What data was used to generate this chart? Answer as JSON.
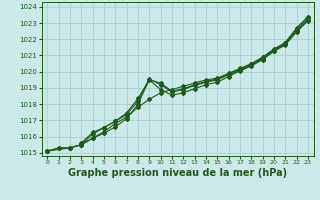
{
  "title": "Graphe pression niveau de la mer (hPa)",
  "title_fontsize": 7.0,
  "bg_color": "#cce8e8",
  "grid_color": "#aacfcf",
  "line_color": "#1a5c1a",
  "xlim": [
    -0.5,
    23.5
  ],
  "ylim": [
    1014.8,
    1024.3
  ],
  "yticks": [
    1015,
    1016,
    1017,
    1018,
    1019,
    1020,
    1021,
    1022,
    1023,
    1024
  ],
  "x_ticks": [
    0,
    1,
    2,
    3,
    4,
    5,
    6,
    7,
    8,
    9,
    10,
    11,
    12,
    13,
    14,
    15,
    16,
    17,
    18,
    19,
    20,
    21,
    22,
    23
  ],
  "series": [
    {
      "x": [
        0,
        1,
        2,
        3,
        4,
        5,
        6,
        7,
        8,
        9,
        10,
        11,
        12,
        13,
        14,
        15,
        16,
        17,
        18,
        19,
        20,
        21,
        22,
        23
      ],
      "y": [
        1015.1,
        1015.3,
        1015.3,
        1015.5,
        1015.9,
        1016.3,
        1016.8,
        1017.2,
        1017.8,
        1018.3,
        1018.7,
        1018.9,
        1019.1,
        1019.3,
        1019.5,
        1019.6,
        1019.9,
        1020.2,
        1020.5,
        1020.9,
        1021.4,
        1021.8,
        1022.7,
        1023.4
      ]
    },
    {
      "x": [
        0,
        1,
        2,
        3,
        4,
        5,
        6,
        7,
        8,
        9,
        10,
        11,
        12,
        13,
        14,
        15,
        16,
        17,
        18,
        19,
        20,
        21,
        22,
        23
      ],
      "y": [
        1015.1,
        1015.3,
        1015.3,
        1015.5,
        1015.9,
        1016.2,
        1016.6,
        1017.1,
        1018.0,
        1019.5,
        1019.3,
        1018.8,
        1018.95,
        1019.2,
        1019.4,
        1019.55,
        1019.85,
        1020.15,
        1020.45,
        1020.85,
        1021.35,
        1021.75,
        1022.6,
        1023.3
      ]
    },
    {
      "x": [
        0,
        2,
        3,
        4,
        5,
        6,
        7,
        8,
        9,
        10,
        11,
        12,
        13,
        14,
        15,
        16,
        17,
        18,
        19,
        20,
        21,
        22,
        23
      ],
      "y": [
        1015.1,
        1015.3,
        1015.5,
        1016.15,
        1016.55,
        1016.95,
        1017.35,
        1018.2,
        1019.55,
        1019.2,
        1018.75,
        1018.9,
        1019.15,
        1019.35,
        1019.5,
        1019.8,
        1020.1,
        1020.4,
        1020.8,
        1021.3,
        1021.7,
        1022.5,
        1023.2
      ]
    },
    {
      "x": [
        3,
        4,
        5,
        6,
        7,
        8,
        9,
        10,
        11,
        12,
        13,
        14,
        15,
        16,
        17,
        18,
        19,
        20,
        21,
        22,
        23
      ],
      "y": [
        1015.6,
        1016.25,
        1016.55,
        1016.95,
        1017.45,
        1018.35,
        1019.5,
        1018.9,
        1018.55,
        1018.7,
        1018.95,
        1019.2,
        1019.35,
        1019.7,
        1020.05,
        1020.35,
        1020.75,
        1021.25,
        1021.65,
        1022.45,
        1023.15
      ]
    }
  ]
}
